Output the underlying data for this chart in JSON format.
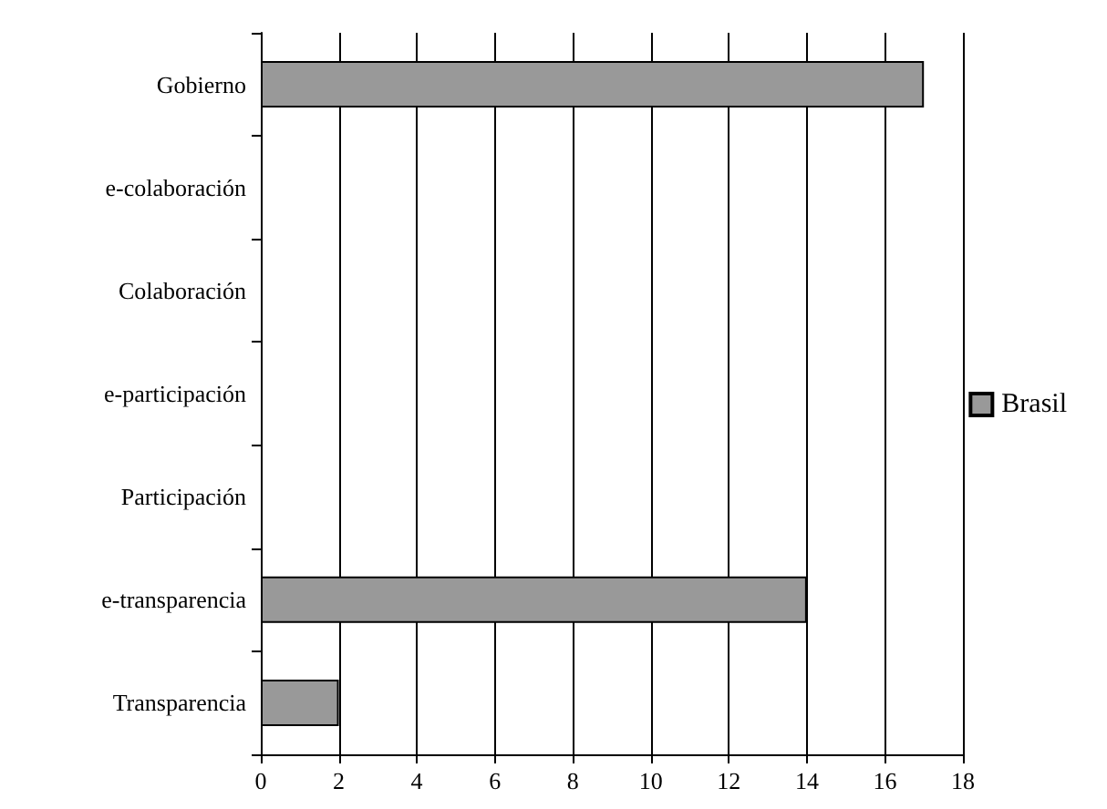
{
  "chart_data": {
    "type": "bar",
    "orientation": "horizontal",
    "categories": [
      "Gobierno",
      "e-colaboración",
      "Colaboración",
      "e-participación",
      "Participación",
      "e-transparencia",
      "Transparencia"
    ],
    "series": [
      {
        "name": "Brasil",
        "color": "#999999",
        "values": [
          17,
          0,
          0,
          0,
          0,
          14,
          2
        ]
      }
    ],
    "xlim": [
      0,
      18
    ],
    "xticks": [
      0,
      2,
      4,
      6,
      8,
      10,
      12,
      14,
      16,
      18
    ],
    "grid": "x",
    "legend": "right"
  }
}
